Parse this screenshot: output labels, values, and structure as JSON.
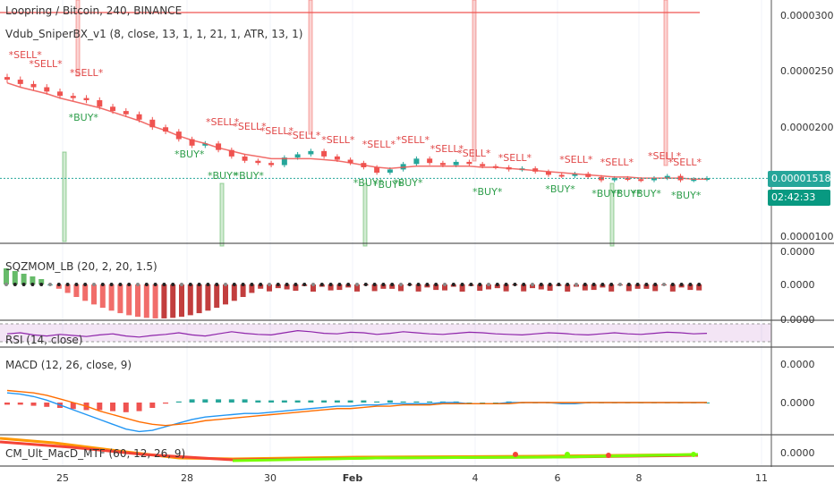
{
  "header": {
    "symbol_line": "Loopring / Bitcoin, 240, BINANCE",
    "indicator_line": "Vdub_SniperBX_v1 (8, close, 13, 1, 1, 21, 1, ATR, 13, 1)"
  },
  "price_axis": {
    "ticks": [
      "0.00003000",
      "0.00002500",
      "0.00002000",
      "0.00001000"
    ],
    "current_price": "0.00001518",
    "countdown": "02:42:33"
  },
  "panes": {
    "sqzmom": {
      "label": "SQZMOM_LB (20, 2, 20, 1.5)",
      "ticks": [
        "0.0000",
        "0.0000",
        "0.0000"
      ]
    },
    "rsi": {
      "label": "RSI (14, close)"
    },
    "macd": {
      "label": "MACD (12, 26, close, 9)",
      "ticks": [
        "0.0000",
        "0.0000"
      ]
    },
    "cm": {
      "label": "CM_Ult_MacD_MTF (60, 12, 26, 9)",
      "ticks": [
        "0.0000"
      ]
    }
  },
  "x_axis": {
    "ticks": [
      "25",
      "28",
      "30",
      "Feb",
      "4",
      "6",
      "8",
      "11"
    ]
  },
  "signals": {
    "sell_text": "*SELL*",
    "buy_text": "*BUY*"
  },
  "colors": {
    "up": "#26a69a",
    "down": "#ef5350",
    "ema": "#ef5350",
    "price_label": "#26a69a",
    "countdown": "#089981",
    "buy_text": "#2e9e4b",
    "sell_text": "#e04848",
    "rsi_line": "#8e24aa",
    "macd_line": "#2196f3",
    "signal_line": "#ff6d00"
  },
  "chart_data": {
    "type": "candlestick",
    "title": "Loopring / Bitcoin, 240, BINANCE",
    "ylabel": "",
    "ylim": [
      9.5e-06,
      3.15e-05
    ],
    "current_price": 1.518e-05,
    "x_ticks": [
      "25",
      "28",
      "30",
      "Feb",
      "4",
      "6",
      "8",
      "11"
    ],
    "close_series": [
      2.43e-05,
      2.39e-05,
      2.36e-05,
      2.32e-05,
      2.28e-05,
      2.26e-05,
      2.24e-05,
      2.18e-05,
      2.14e-05,
      2.11e-05,
      2.06e-05,
      1.99e-05,
      1.95e-05,
      1.88e-05,
      1.82e-05,
      1.84e-05,
      1.78e-05,
      1.72e-05,
      1.68e-05,
      1.66e-05,
      1.64e-05,
      1.71e-05,
      1.74e-05,
      1.77e-05,
      1.72e-05,
      1.69e-05,
      1.66e-05,
      1.62e-05,
      1.57e-05,
      1.6e-05,
      1.65e-05,
      1.7e-05,
      1.66e-05,
      1.64e-05,
      1.67e-05,
      1.65e-05,
      1.63e-05,
      1.62e-05,
      1.6e-05,
      1.61e-05,
      1.58e-05,
      1.55e-05,
      1.54e-05,
      1.56e-05,
      1.53e-05,
      1.5e-05,
      1.52e-05,
      1.51e-05,
      1.5e-05,
      1.52e-05,
      1.54e-05,
      1.5e-05,
      1.51e-05,
      1.52e-05
    ],
    "ema_series": [
      2.4e-05,
      2.36e-05,
      2.33e-05,
      2.3e-05,
      2.26e-05,
      2.23e-05,
      2.2e-05,
      2.17e-05,
      2.13e-05,
      2.09e-05,
      2.05e-05,
      2e-05,
      1.96e-05,
      1.91e-05,
      1.87e-05,
      1.84e-05,
      1.8e-05,
      1.77e-05,
      1.74e-05,
      1.72e-05,
      1.7e-05,
      1.7e-05,
      1.7e-05,
      1.7e-05,
      1.69e-05,
      1.68e-05,
      1.66e-05,
      1.64e-05,
      1.62e-05,
      1.61e-05,
      1.62e-05,
      1.63e-05,
      1.63e-05,
      1.63e-05,
      1.63e-05,
      1.63e-05,
      1.62e-05,
      1.62e-05,
      1.61e-05,
      1.6e-05,
      1.59e-05,
      1.58e-05,
      1.57e-05,
      1.56e-05,
      1.55e-05,
      1.54e-05,
      1.53e-05,
      1.53e-05,
      1.52e-05,
      1.52e-05,
      1.52e-05,
      1.52e-05,
      1.51e-05,
      1.51e-05
    ],
    "sell_signals_x": [
      0.01,
      0.04,
      0.1,
      0.3,
      0.34,
      0.38,
      0.42,
      0.47,
      0.53,
      0.58,
      0.63,
      0.67,
      0.73,
      0.82,
      0.88,
      0.95,
      0.98
    ],
    "buy_signals_x": [
      0.09,
      0.25,
      0.3,
      0.34,
      0.52,
      0.55,
      0.58,
      0.7,
      0.81,
      0.88,
      0.91,
      0.94,
      1.0
    ],
    "rsi_series": [
      48,
      50,
      46,
      44,
      47,
      45,
      43,
      46,
      48,
      44,
      42,
      45,
      47,
      50,
      46,
      44,
      48,
      52,
      49,
      47,
      46,
      50,
      54,
      52,
      49,
      48,
      51,
      50,
      47,
      49,
      52,
      50,
      48,
      47,
      49,
      51,
      50,
      48,
      47,
      46,
      48,
      50,
      49,
      47,
      46,
      48,
      50,
      48,
      47,
      49,
      51,
      50,
      48,
      49
    ],
    "macd_series": [
      8,
      7,
      5,
      2,
      -2,
      -6,
      -10,
      -14,
      -18,
      -22,
      -24,
      -23,
      -20,
      -17,
      -14,
      -12,
      -11,
      -10,
      -9,
      -9,
      -8,
      -7,
      -6,
      -5,
      -4,
      -3,
      -3,
      -2,
      -2,
      -1,
      -1,
      -1,
      -1,
      0,
      0,
      -1,
      -1,
      -1,
      0,
      0,
      0,
      0,
      -1,
      -1,
      0,
      0,
      0,
      0,
      0,
      0,
      0,
      0,
      0,
      0
    ],
    "signal_series": [
      10,
      9,
      8,
      6,
      3,
      0,
      -3,
      -7,
      -10,
      -13,
      -16,
      -18,
      -19,
      -18,
      -17,
      -15,
      -14,
      -13,
      -12,
      -11,
      -10,
      -9,
      -8,
      -7,
      -6,
      -5,
      -5,
      -4,
      -3,
      -3,
      -2,
      -2,
      -2,
      -1,
      -1,
      -1,
      -1,
      -1,
      -1,
      0,
      0,
      0,
      0,
      0,
      0,
      0,
      0,
      0,
      0,
      0,
      0,
      0,
      0,
      0
    ]
  }
}
